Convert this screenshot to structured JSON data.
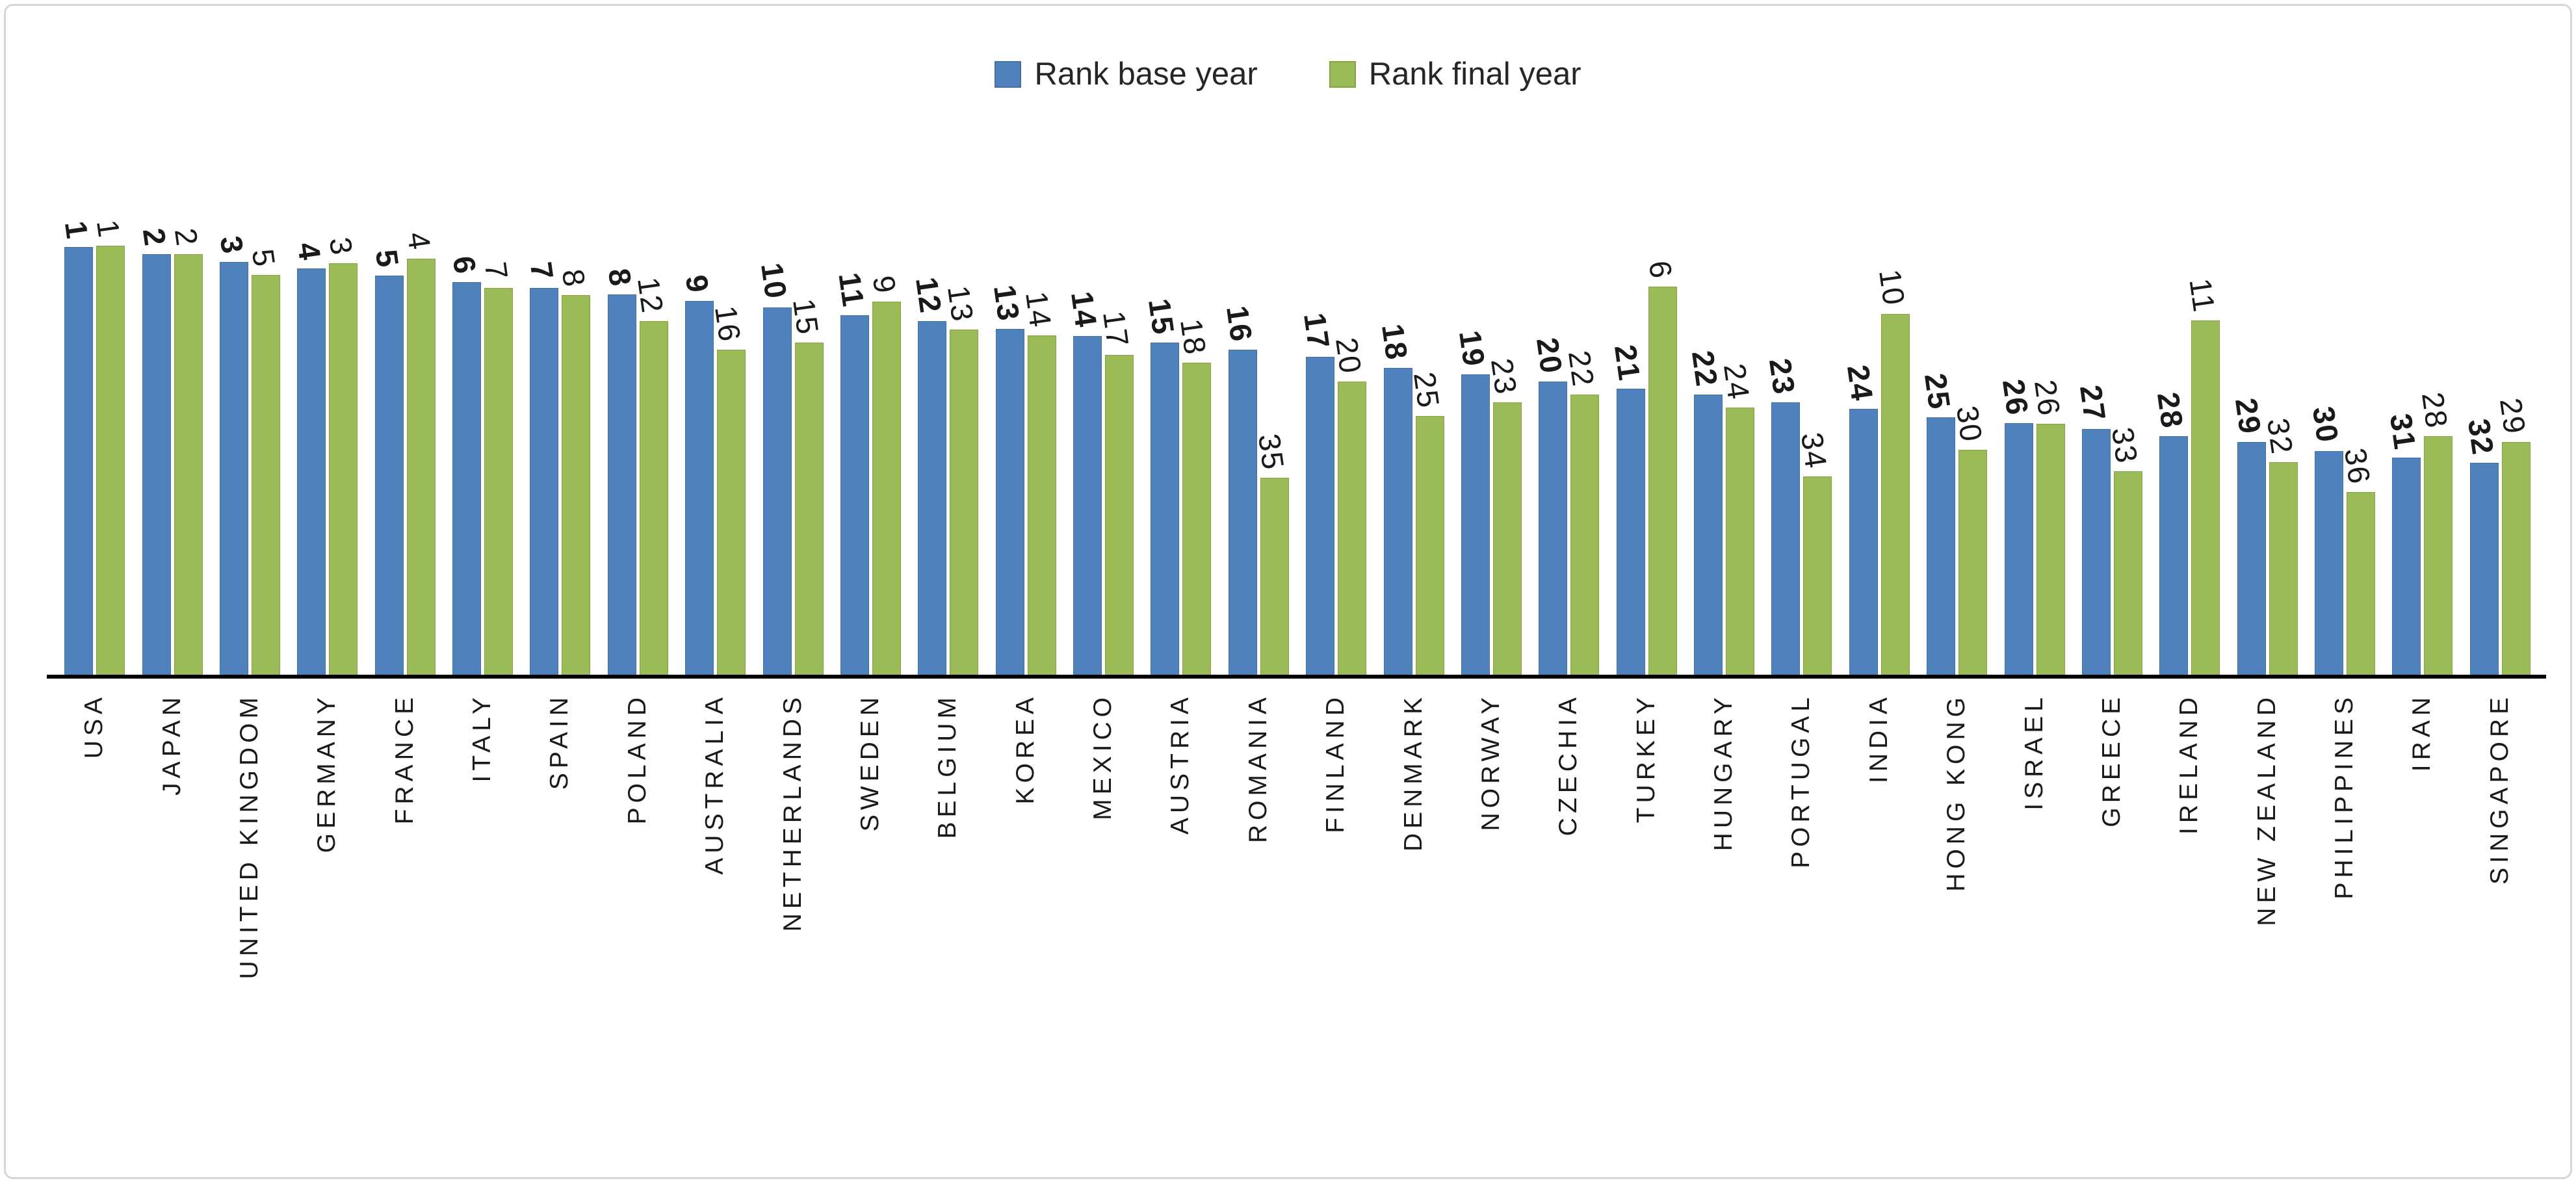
{
  "legend": {
    "base_label": "Rank  base year",
    "final_label": "Rank final year"
  },
  "colors": {
    "base_series": "#4f81bd",
    "final_series": "#9bbb59",
    "axis": "#000000",
    "frame_border": "#d6d6d6",
    "label_text": "#1a1a1a"
  },
  "chart_data": {
    "type": "bar",
    "title": "",
    "xlabel": "",
    "ylabel": "",
    "grid": false,
    "legend_position": "top-center",
    "categories": [
      "USA",
      "JAPAN",
      "UNITED KINGDOM",
      "GERMANY",
      "FRANCE",
      "ITALY",
      "SPAIN",
      "POLAND",
      "AUSTRALIA",
      "NETHERLANDS",
      "SWEDEN",
      "BELGIUM",
      "KOREA",
      "MEXICO",
      "AUSTRIA",
      "ROMANIA",
      "FINLAND",
      "DENMARK",
      "NORWAY",
      "CZECHIA",
      "TURKEY",
      "HUNGARY",
      "PORTUGAL",
      "INDIA",
      "HONG KONG",
      "ISRAEL",
      "GREECE",
      "IRELAND",
      "NEW ZEALAND",
      "PHILIPPINES",
      "IRAN",
      "SINGAPORE"
    ],
    "series": [
      {
        "name": "Rank  base year",
        "values": [
          1,
          2,
          3,
          4,
          5,
          6,
          7,
          8,
          9,
          10,
          11,
          12,
          13,
          14,
          15,
          16,
          17,
          18,
          19,
          20,
          21,
          22,
          23,
          24,
          25,
          26,
          27,
          28,
          29,
          30,
          31,
          32
        ],
        "bar_heights_pct_of_plot": [
          99.0,
          97.3,
          95.5,
          94.0,
          92.3,
          90.8,
          89.5,
          88.0,
          86.5,
          85.0,
          83.2,
          81.8,
          80.0,
          78.4,
          76.8,
          75.2,
          73.5,
          71.0,
          69.5,
          67.8,
          66.2,
          64.8,
          63.0,
          61.5,
          59.5,
          58.2,
          56.8,
          55.2,
          53.8,
          51.8,
          50.2,
          49.0
        ]
      },
      {
        "name": "Rank final year",
        "values": [
          1,
          2,
          5,
          3,
          4,
          7,
          8,
          12,
          16,
          15,
          9,
          13,
          14,
          17,
          18,
          35,
          20,
          25,
          23,
          22,
          6,
          24,
          34,
          10,
          30,
          26,
          33,
          11,
          32,
          36,
          28,
          29
        ],
        "bar_heights_pct_of_plot": [
          99.2,
          97.3,
          92.5,
          95.2,
          96.3,
          89.5,
          87.8,
          81.8,
          75.2,
          76.8,
          86.3,
          79.8,
          78.5,
          74.0,
          72.2,
          45.5,
          67.8,
          59.8,
          63.0,
          64.8,
          89.8,
          61.8,
          45.8,
          83.5,
          52.0,
          58.0,
          47.0,
          82.0,
          49.2,
          42.2,
          55.2,
          53.8
        ]
      }
    ]
  }
}
